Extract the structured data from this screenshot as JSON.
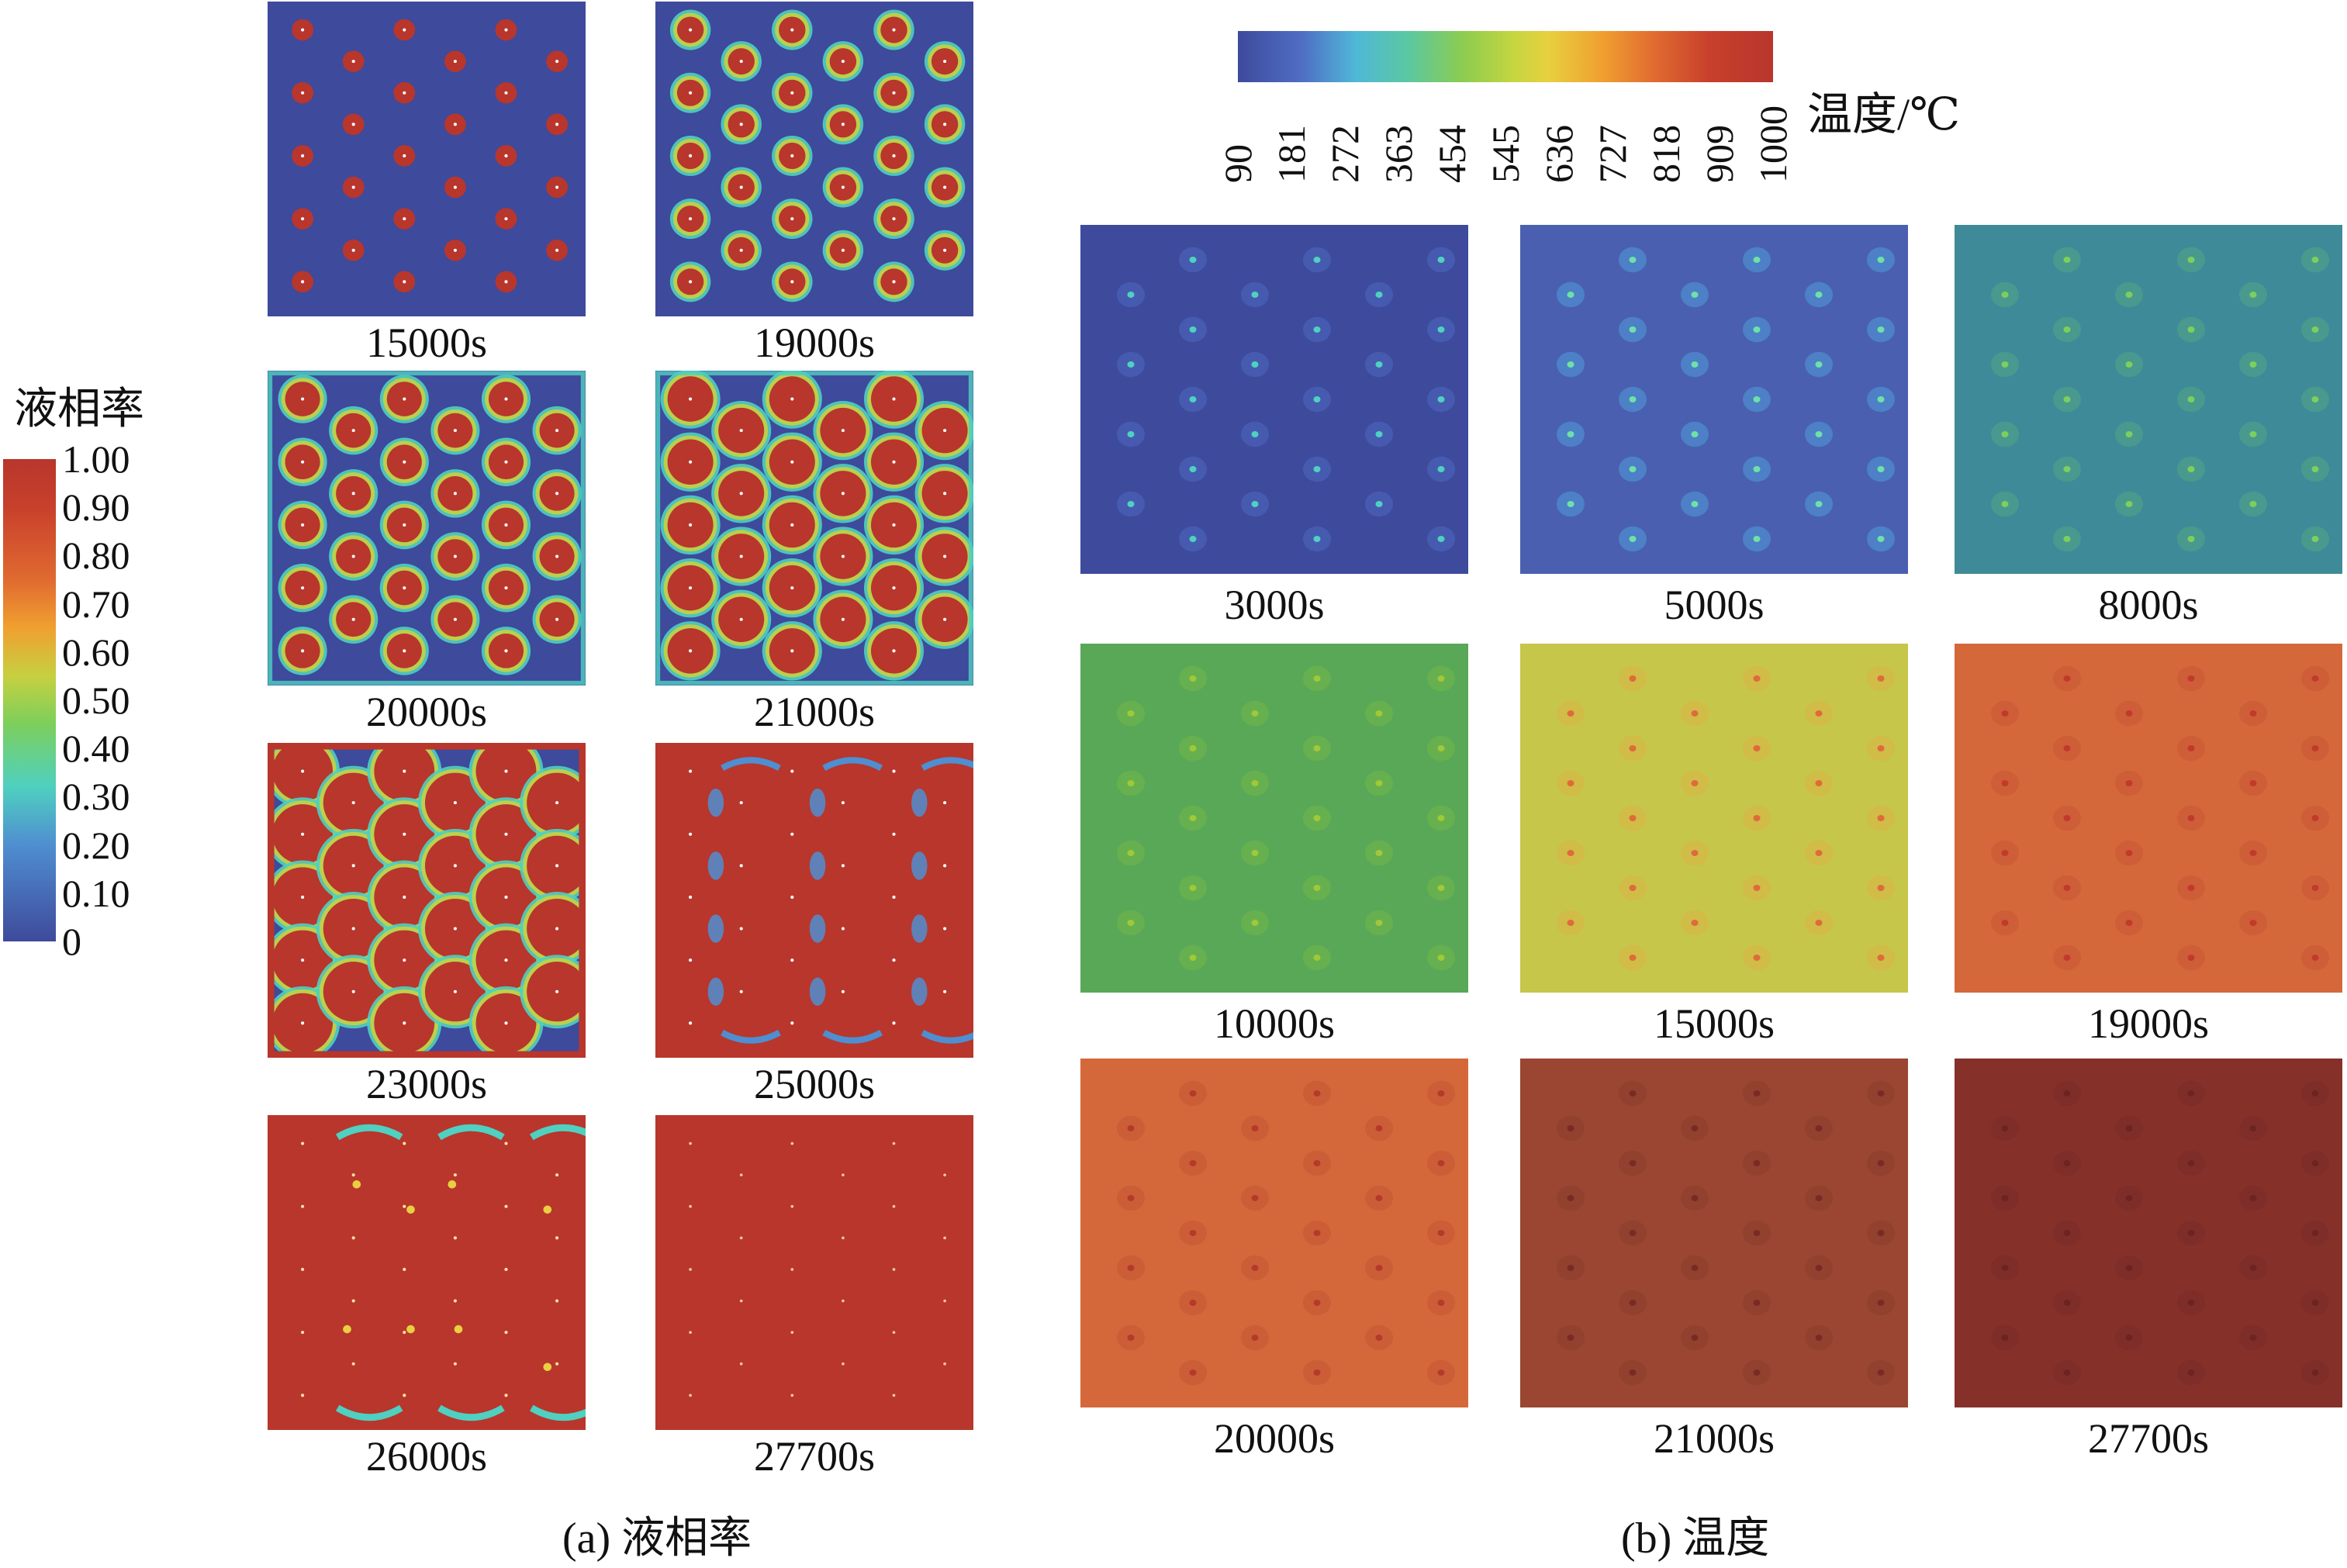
{
  "liquid_fraction_legend": {
    "title": "液相率",
    "ticks": [
      "1.00",
      "0.90",
      "0.80",
      "0.70",
      "0.60",
      "0.50",
      "0.40",
      "0.30",
      "0.20",
      "0.10",
      "0"
    ]
  },
  "temperature_legend": {
    "unit_label": "温度/℃",
    "ticks": [
      "90",
      "181",
      "272",
      "363",
      "454",
      "545",
      "636",
      "727",
      "818",
      "909",
      "1000"
    ]
  },
  "captions": {
    "a": "(a) 液相率",
    "b": "(b) 温度"
  },
  "liquid_fraction_panels": [
    {
      "time": "15000s",
      "stage": 0
    },
    {
      "time": "19000s",
      "stage": 1
    },
    {
      "time": "20000s",
      "stage": 2
    },
    {
      "time": "21000s",
      "stage": 3
    },
    {
      "time": "23000s",
      "stage": 4
    },
    {
      "time": "25000s",
      "stage": 5
    },
    {
      "time": "26000s",
      "stage": 6
    },
    {
      "time": "27700s",
      "stage": 7
    }
  ],
  "temperature_panels": [
    {
      "time": "3000s",
      "bg": "#3e4a9c",
      "spot": "#4fd0c0",
      "halo": "#4a62b8"
    },
    {
      "time": "5000s",
      "bg": "#4a5fb0",
      "spot": "#6ee0a8",
      "halo": "#4f8ed0"
    },
    {
      "time": "8000s",
      "bg": "#3f8a98",
      "spot": "#7ccf5c",
      "halo": "#4fa08a"
    },
    {
      "time": "10000s",
      "bg": "#58a858",
      "spot": "#a0c838",
      "halo": "#6cb44c"
    },
    {
      "time": "15000s",
      "bg": "#c6c64a",
      "spot": "#e06a3c",
      "halo": "#d4b846"
    },
    {
      "time": "19000s",
      "bg": "#d4683a",
      "spot": "#c23a2c",
      "halo": "#cc5a36"
    },
    {
      "time": "20000s",
      "bg": "#d4683a",
      "spot": "#b43a2c",
      "halo": "#c95a36"
    },
    {
      "time": "21000s",
      "bg": "#9a4632",
      "spot": "#7a2a26",
      "halo": "#8e3e2e"
    },
    {
      "time": "27700s",
      "bg": "#86302a",
      "spot": "#6c2422",
      "halo": "#7c2c28"
    }
  ],
  "colors": {
    "liquid": "#b8362c",
    "solid": "#3e4a9c"
  }
}
